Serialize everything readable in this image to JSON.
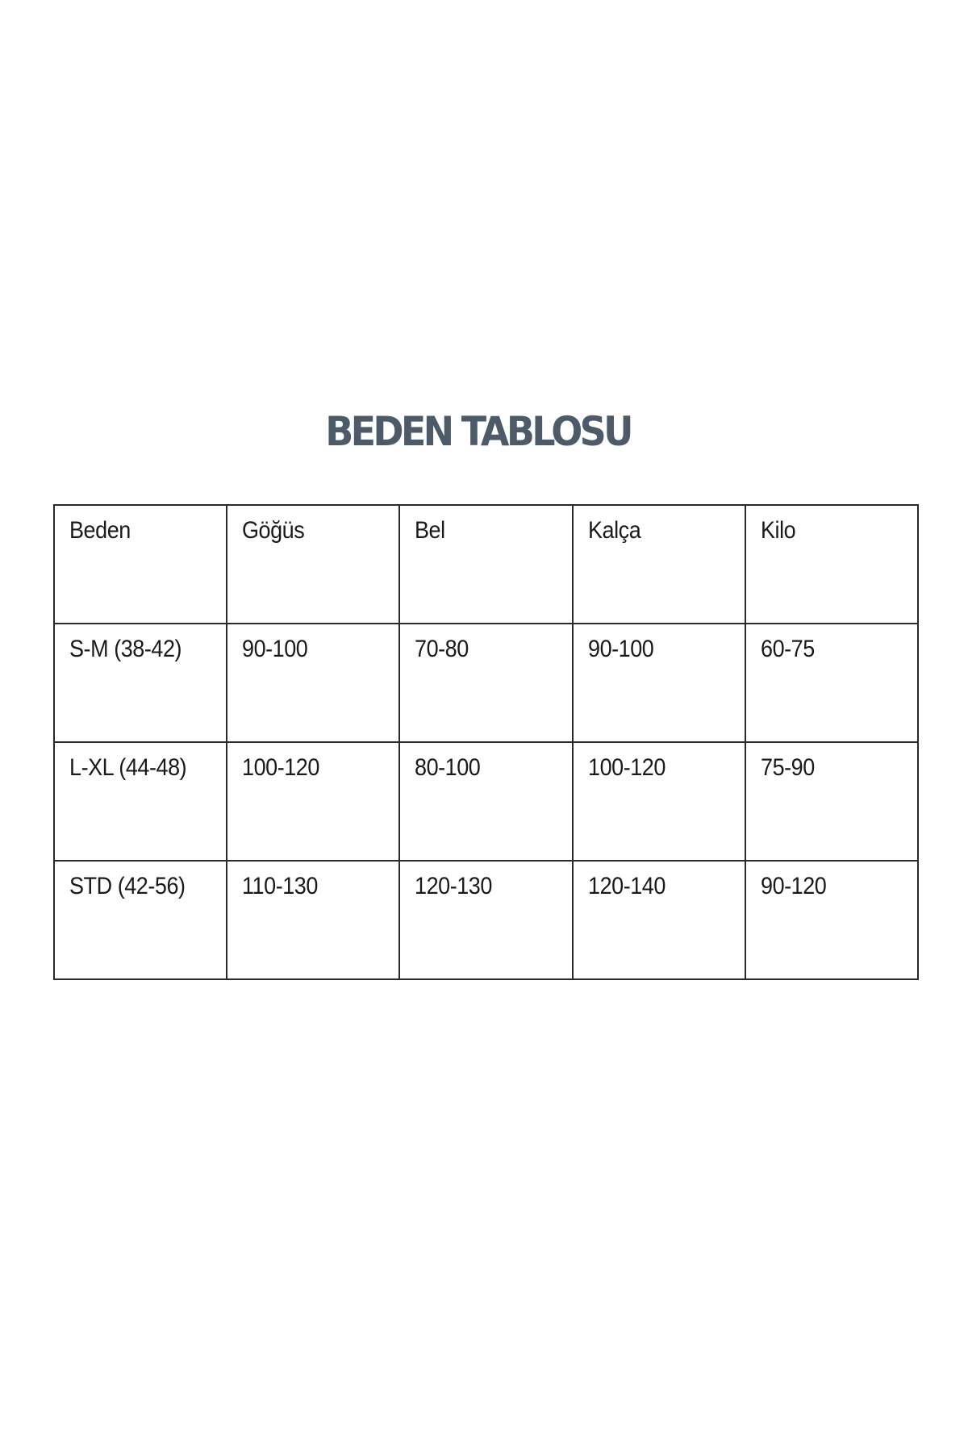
{
  "title": "BEDEN TABLOSU",
  "table": {
    "headers": [
      "Beden",
      "Göğüs",
      "Bel",
      "Kalça",
      "Kilo"
    ],
    "rows": [
      [
        "S-M (38-42)",
        "90-100",
        "70-80",
        "90-100",
        "60-75"
      ],
      [
        "L-XL (44-48)",
        "100-120",
        "80-100",
        "100-120",
        "75-90"
      ],
      [
        "STD (42-56)",
        "110-130",
        "120-130",
        "120-140",
        "90-120"
      ]
    ]
  },
  "colors": {
    "title": "#4d5a68",
    "border": "#2a2a2a"
  }
}
